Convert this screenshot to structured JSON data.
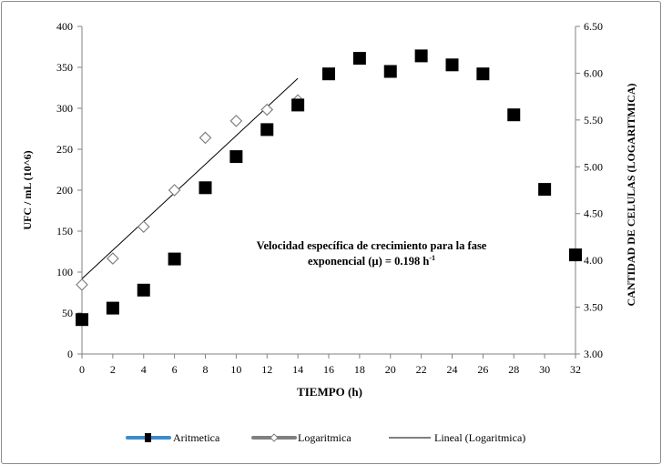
{
  "chart_data": {
    "type": "scatter",
    "xlabel": "TIEMPO (h)",
    "ylabel": "UFC / mL (10^6)",
    "y2label": "CANTIDAD DE CELULAS (LOGARITMICA)",
    "xlim": [
      0,
      32
    ],
    "ylim": [
      0,
      400
    ],
    "y2lim": [
      3.0,
      6.5
    ],
    "xticks": [
      "0",
      "2",
      "4",
      "6",
      "8",
      "10",
      "12",
      "14",
      "16",
      "18",
      "20",
      "22",
      "24",
      "26",
      "28",
      "30",
      "32"
    ],
    "yticks": [
      "0",
      "50",
      "100",
      "150",
      "200",
      "250",
      "300",
      "350",
      "400"
    ],
    "y2ticks": [
      "3.00",
      "3.50",
      "4.00",
      "4.50",
      "5.00",
      "5.50",
      "6.00",
      "6.50"
    ],
    "grid": false,
    "legend_position": "bottom",
    "annotation": {
      "line1": "Velocidad específica de crecimiento para la fase",
      "line2": "exponencial (µ) = 0.198 h",
      "superscript": "-1"
    },
    "series": [
      {
        "name": "Aritmetica",
        "axis": "left",
        "marker": "square",
        "color": "#000000",
        "legend_line_color": "#3b8ccf",
        "x": [
          0,
          2,
          4,
          6,
          8,
          10,
          12,
          14,
          16,
          18,
          20,
          22,
          24,
          26,
          28,
          30,
          32
        ],
        "y": [
          42,
          56,
          78,
          116,
          203,
          241,
          274,
          304,
          342,
          361,
          345,
          364,
          353,
          342,
          292,
          201,
          121
        ]
      },
      {
        "name": "Logaritmica",
        "axis": "right",
        "marker": "diamond-open",
        "color": "#808080",
        "x": [
          0,
          2,
          4,
          6,
          8,
          10,
          12,
          14
        ],
        "y": [
          3.74,
          4.02,
          4.36,
          4.75,
          5.31,
          5.49,
          5.61,
          5.71
        ]
      },
      {
        "name": "Lineal (Logaritmica)",
        "axis": "right",
        "type": "trendline",
        "color": "#000000"
      }
    ]
  }
}
